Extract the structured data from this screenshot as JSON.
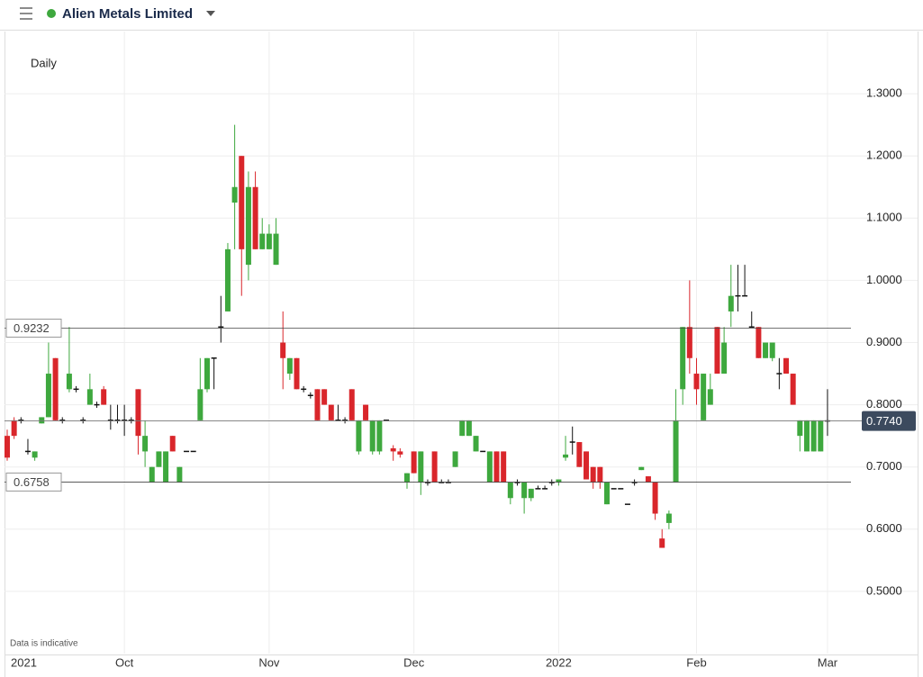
{
  "header": {
    "title": "Alien Metals Limited"
  },
  "chart_data": {
    "type": "candlestick",
    "interval": "Daily",
    "note": "Data is indicative",
    "up_color": "#3ea83e",
    "down_color": "#d9262b",
    "flat_color": "#111111",
    "ylim": [
      0.4,
      1.4
    ],
    "yticks": [
      {
        "value": 0.5,
        "label": "0.5000"
      },
      {
        "value": 0.6,
        "label": "0.6000"
      },
      {
        "value": 0.7,
        "label": "0.7000"
      },
      {
        "value": 0.8,
        "label": "0.8000"
      },
      {
        "value": 0.9,
        "label": "0.9000"
      },
      {
        "value": 1.0,
        "label": "1.0000"
      },
      {
        "value": 1.1,
        "label": "1.1000"
      },
      {
        "value": 1.2,
        "label": "1.2000"
      },
      {
        "value": 1.3,
        "label": "1.3000"
      }
    ],
    "grid": true,
    "levels": [
      {
        "value": 0.9232,
        "label": "0.9232"
      },
      {
        "value": 0.6758,
        "label": "0.6758"
      }
    ],
    "last_price": {
      "value": 0.774,
      "label": "0.7740"
    },
    "categories": [
      "2021",
      null,
      null,
      null,
      null,
      null,
      null,
      null,
      null,
      null,
      null,
      null,
      null,
      null,
      null,
      null,
      null,
      "Oct",
      null,
      null,
      null,
      null,
      null,
      null,
      null,
      null,
      null,
      null,
      null,
      null,
      null,
      null,
      null,
      null,
      null,
      null,
      null,
      null,
      "Nov",
      null,
      null,
      null,
      null,
      null,
      null,
      null,
      null,
      null,
      null,
      null,
      null,
      null,
      null,
      null,
      null,
      null,
      null,
      null,
      null,
      "Dec",
      null,
      null,
      null,
      null,
      null,
      null,
      null,
      null,
      null,
      null,
      null,
      null,
      null,
      null,
      null,
      null,
      null,
      null,
      null,
      null,
      "2022",
      null,
      null,
      null,
      null,
      null,
      null,
      null,
      null,
      null,
      null,
      null,
      null,
      null,
      null,
      null,
      null,
      null,
      null,
      null,
      "Feb",
      null,
      null,
      null,
      null,
      null,
      null,
      null,
      null,
      null,
      null,
      null,
      null,
      null,
      null,
      null,
      null,
      null,
      null,
      "Mar"
    ],
    "ohlc": [
      [
        0.75,
        0.76,
        0.71,
        0.715
      ],
      [
        0.775,
        0.78,
        0.745,
        0.75
      ],
      [
        0.775,
        0.78,
        0.77,
        0.775
      ],
      [
        0.725,
        0.745,
        0.72,
        0.725
      ],
      [
        0.715,
        0.725,
        0.71,
        0.725
      ],
      [
        0.77,
        0.78,
        0.77,
        0.78
      ],
      [
        0.78,
        0.9,
        0.78,
        0.85
      ],
      [
        0.875,
        0.875,
        0.775,
        0.775
      ],
      [
        0.775,
        0.78,
        0.77,
        0.775
      ],
      [
        0.825,
        0.925,
        0.82,
        0.85
      ],
      [
        0.825,
        0.83,
        0.82,
        0.825
      ],
      [
        0.775,
        0.78,
        0.77,
        0.775
      ],
      [
        0.8,
        0.85,
        0.8,
        0.825
      ],
      [
        0.8,
        0.805,
        0.795,
        0.8
      ],
      [
        0.825,
        0.83,
        0.8,
        0.8
      ],
      [
        0.775,
        0.8,
        0.76,
        0.775
      ],
      [
        0.775,
        0.8,
        0.77,
        0.775
      ],
      [
        0.775,
        0.8,
        0.75,
        0.775
      ],
      [
        0.775,
        0.78,
        0.77,
        0.775
      ],
      [
        0.825,
        0.825,
        0.72,
        0.75
      ],
      [
        0.725,
        0.775,
        0.7,
        0.75
      ],
      [
        0.675,
        0.7,
        0.675,
        0.7
      ],
      [
        0.7,
        0.725,
        0.7,
        0.725
      ],
      [
        0.675,
        0.725,
        0.675,
        0.725
      ],
      [
        0.75,
        0.75,
        0.725,
        0.725
      ],
      [
        0.675,
        0.7,
        0.675,
        0.7
      ],
      [
        0.725,
        0.725,
        0.725,
        0.725
      ],
      [
        0.725,
        0.725,
        0.725,
        0.725
      ],
      [
        0.775,
        0.875,
        0.775,
        0.825
      ],
      [
        0.825,
        0.875,
        0.82,
        0.875
      ],
      [
        0.875,
        0.875,
        0.825,
        0.875
      ],
      [
        0.925,
        0.975,
        0.9,
        0.925
      ],
      [
        0.95,
        1.06,
        0.95,
        1.05
      ],
      [
        1.125,
        1.25,
        1.05,
        1.15
      ],
      [
        1.2,
        1.2,
        0.975,
        1.05
      ],
      [
        1.025,
        1.175,
        1.0,
        1.15
      ],
      [
        1.15,
        1.175,
        1.05,
        1.05
      ],
      [
        1.05,
        1.1,
        1.05,
        1.075
      ],
      [
        1.05,
        1.09,
        1.05,
        1.075
      ],
      [
        1.025,
        1.1,
        1.025,
        1.075
      ],
      [
        0.9,
        0.95,
        0.825,
        0.875
      ],
      [
        0.85,
        0.875,
        0.84,
        0.875
      ],
      [
        0.875,
        0.875,
        0.825,
        0.825
      ],
      [
        0.825,
        0.83,
        0.82,
        0.825
      ],
      [
        0.815,
        0.82,
        0.81,
        0.815
      ],
      [
        0.825,
        0.825,
        0.775,
        0.775
      ],
      [
        0.825,
        0.825,
        0.8,
        0.8
      ],
      [
        0.8,
        0.8,
        0.775,
        0.775
      ],
      [
        0.775,
        0.8,
        0.775,
        0.775
      ],
      [
        0.775,
        0.78,
        0.77,
        0.775
      ],
      [
        0.825,
        0.825,
        0.775,
        0.775
      ],
      [
        0.725,
        0.775,
        0.72,
        0.775
      ],
      [
        0.8,
        0.8,
        0.775,
        0.775
      ],
      [
        0.725,
        0.775,
        0.72,
        0.775
      ],
      [
        0.725,
        0.775,
        0.72,
        0.775
      ],
      [
        0.775,
        0.775,
        0.775,
        0.775
      ],
      [
        0.73,
        0.735,
        0.71,
        0.725
      ],
      [
        0.725,
        0.73,
        0.715,
        0.72
      ],
      [
        0.675,
        0.69,
        0.665,
        0.69
      ],
      [
        0.725,
        0.725,
        0.69,
        0.69
      ],
      [
        0.675,
        0.725,
        0.655,
        0.725
      ],
      [
        0.675,
        0.68,
        0.67,
        0.675
      ],
      [
        0.725,
        0.725,
        0.675,
        0.675
      ],
      [
        0.675,
        0.68,
        0.675,
        0.675
      ],
      [
        0.675,
        0.68,
        0.675,
        0.675
      ],
      [
        0.7,
        0.725,
        0.7,
        0.725
      ],
      [
        0.75,
        0.775,
        0.75,
        0.775
      ],
      [
        0.75,
        0.775,
        0.75,
        0.775
      ],
      [
        0.725,
        0.75,
        0.725,
        0.75
      ],
      [
        0.725,
        0.725,
        0.725,
        0.725
      ],
      [
        0.675,
        0.725,
        0.675,
        0.725
      ],
      [
        0.725,
        0.725,
        0.675,
        0.675
      ],
      [
        0.725,
        0.725,
        0.675,
        0.675
      ],
      [
        0.65,
        0.675,
        0.64,
        0.675
      ],
      [
        0.675,
        0.68,
        0.67,
        0.675
      ],
      [
        0.65,
        0.675,
        0.625,
        0.675
      ],
      [
        0.65,
        0.665,
        0.645,
        0.665
      ],
      [
        0.665,
        0.67,
        0.665,
        0.665
      ],
      [
        0.665,
        0.67,
        0.665,
        0.665
      ],
      [
        0.675,
        0.68,
        0.67,
        0.675
      ],
      [
        0.675,
        0.68,
        0.67,
        0.68
      ],
      [
        0.715,
        0.75,
        0.71,
        0.72
      ],
      [
        0.74,
        0.765,
        0.72,
        0.74
      ],
      [
        0.74,
        0.74,
        0.7,
        0.7
      ],
      [
        0.725,
        0.725,
        0.68,
        0.68
      ],
      [
        0.7,
        0.7,
        0.665,
        0.675
      ],
      [
        0.7,
        0.7,
        0.665,
        0.675
      ],
      [
        0.64,
        0.675,
        0.64,
        0.675
      ],
      [
        0.665,
        0.665,
        0.665,
        0.665
      ],
      [
        0.665,
        0.665,
        0.665,
        0.665
      ],
      [
        0.64,
        0.64,
        0.64,
        0.64
      ],
      [
        0.675,
        0.68,
        0.67,
        0.675
      ],
      [
        0.695,
        0.7,
        0.695,
        0.7
      ],
      [
        0.685,
        0.685,
        0.675,
        0.675
      ],
      [
        0.675,
        0.675,
        0.615,
        0.625
      ],
      [
        0.585,
        0.6,
        0.57,
        0.57
      ],
      [
        0.61,
        0.63,
        0.6,
        0.625
      ],
      [
        0.675,
        0.825,
        0.675,
        0.775
      ],
      [
        0.825,
        0.925,
        0.8,
        0.925
      ],
      [
        0.925,
        1.0,
        0.85,
        0.875
      ],
      [
        0.85,
        0.875,
        0.8,
        0.825
      ],
      [
        0.775,
        0.85,
        0.775,
        0.85
      ],
      [
        0.8,
        0.85,
        0.8,
        0.825
      ],
      [
        0.925,
        0.925,
        0.85,
        0.85
      ],
      [
        0.85,
        0.925,
        0.85,
        0.9
      ],
      [
        0.95,
        1.025,
        0.925,
        0.975
      ],
      [
        0.975,
        1.025,
        0.95,
        0.975
      ],
      [
        0.975,
        1.025,
        0.975,
        0.975
      ],
      [
        0.925,
        0.95,
        0.925,
        0.925
      ],
      [
        0.925,
        0.925,
        0.875,
        0.875
      ],
      [
        0.875,
        0.9,
        0.875,
        0.9
      ],
      [
        0.875,
        0.9,
        0.87,
        0.9
      ],
      [
        0.85,
        0.875,
        0.825,
        0.85
      ],
      [
        0.875,
        0.875,
        0.85,
        0.85
      ],
      [
        0.85,
        0.85,
        0.8,
        0.8
      ],
      [
        0.75,
        0.775,
        0.725,
        0.775
      ],
      [
        0.725,
        0.775,
        0.725,
        0.775
      ],
      [
        0.725,
        0.775,
        0.725,
        0.775
      ],
      [
        0.725,
        0.775,
        0.725,
        0.775
      ],
      [
        0.774,
        0.825,
        0.75,
        0.774
      ]
    ]
  }
}
